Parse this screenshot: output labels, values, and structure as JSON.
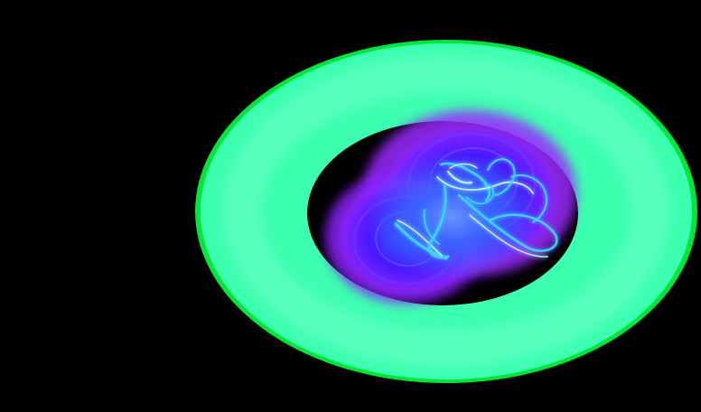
{
  "scene": {
    "background_color": "#000000",
    "ring_color": "#3dffb0",
    "ring_edge_color": "#00ff40",
    "ring_highlight_color": "#7affc8",
    "nebula_color": "#5a10ff",
    "nebula_outer_color": "#9a2cff",
    "core_color": "#2f6bff",
    "filament_color": "#3fd0ff",
    "filament_bright_color": "#aef4ff"
  }
}
